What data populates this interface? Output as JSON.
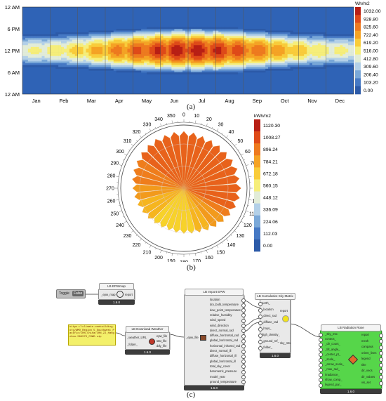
{
  "panel_a": {
    "y_ticks": [
      "12 AM",
      "6 PM",
      "12 PM",
      "6 AM",
      "12 AM"
    ],
    "months": [
      "Jan",
      "Feb",
      "Mar",
      "Apr",
      "May",
      "Jun",
      "Jul",
      "Aug",
      "Sep",
      "Oct",
      "Nov",
      "Dec"
    ],
    "legend_unit": "Wh/m2",
    "legend_values": [
      "1032.00",
      "928.80",
      "825.60",
      "722.40",
      "619.20",
      "516.00",
      "412.80",
      "309.60",
      "206.40",
      "103.20",
      "0.00"
    ],
    "caption": "(a)"
  },
  "panel_b": {
    "angles": [
      "0",
      "10",
      "20",
      "30",
      "40",
      "50",
      "60",
      "70",
      "80",
      "90",
      "100",
      "110",
      "120",
      "130",
      "140",
      "150",
      "160",
      "170",
      "180",
      "190",
      "200",
      "210",
      "220",
      "230",
      "240",
      "250",
      "260",
      "270",
      "280",
      "290",
      "300",
      "310",
      "320",
      "330",
      "340",
      "350"
    ],
    "radiation_kwh_m2": [
      1010,
      1000,
      980,
      980,
      985,
      990,
      1000,
      1010,
      1000,
      1015,
      1005,
      980,
      950,
      920,
      890,
      860,
      830,
      815,
      805,
      800,
      790,
      800,
      810,
      830,
      850,
      870,
      890,
      910,
      930,
      950,
      965,
      985,
      995,
      1005,
      1000,
      1010
    ],
    "legend_unit": "kWh/m2",
    "legend_values": [
      "1120.30",
      "1008.27",
      "896.24",
      "784.21",
      "672.18",
      "560.15",
      "448.12",
      "336.09",
      "224.06",
      "112.03",
      "0.00"
    ],
    "caption": "(b)"
  },
  "panel_c": {
    "epwmap": {
      "title": "LB EPWmap",
      "inputs": [
        "_epw_map"
      ],
      "outputs": [
        "report"
      ],
      "version": "1.6.0"
    },
    "toggle": {
      "label": "Toggle",
      "value": "False"
    },
    "url_panel": {
      "text": "https://climate.onebuilding.org/WMO_Region_5_Southwest_Pacific/CHN_China/CHN_ZJ_Hangzhou.584570_CSWD.zip"
    },
    "download": {
      "title": "LB Download Weather",
      "inputs": [
        "_weather_URL",
        "_folder_"
      ],
      "outputs": [
        "epw_file",
        "stat_file",
        "ddy_file"
      ],
      "version": "1.6.0"
    },
    "import_epw": {
      "title": "LB Import EPW",
      "input": "_epw_file",
      "outputs": [
        "location",
        "dry_bulb_temperature",
        "dew_point_temperature",
        "relative_humidity",
        "wind_speed",
        "wind_direction",
        "direct_normal_rad",
        "diffuse_horizontal_rad",
        "global_horizontal_rad",
        "horizontal_infrared_rad",
        "direct_normal_ill",
        "diffuse_horizontal_ill",
        "global_horizontal_ill",
        "total_sky_cover",
        "barometric_pressure",
        "model_year",
        "ground_temperature"
      ],
      "version": "1.6.0"
    },
    "sky_matrix": {
      "title": "LB Cumulative Sky Matrix",
      "inputs": [
        "north_",
        "_location",
        "_direct_rad",
        "_diffuse_rad",
        "_hoys_",
        "high_density_",
        "_ground_ref_",
        "_folder_"
      ],
      "outputs": [
        "report",
        "sky_mtx"
      ],
      "version": "1.6.0"
    },
    "radiation_rose": {
      "title": "LB Radiation Rose",
      "inputs": [
        "_sky_mtx",
        "context_",
        "_dir_count_",
        "_tilt_angle_",
        "_center_pt_",
        "_scale_",
        "_arrow_scale_",
        "_max_rad_",
        "irradiance_",
        "show_comp_",
        "legend_par_"
      ],
      "outputs": [
        "report",
        "mesh",
        "compass",
        "orient_lines",
        "legend",
        "title",
        "dir_vecs",
        "dir_values",
        "vis_set"
      ],
      "version": "1.6.0"
    },
    "caption": "(c)"
  }
}
